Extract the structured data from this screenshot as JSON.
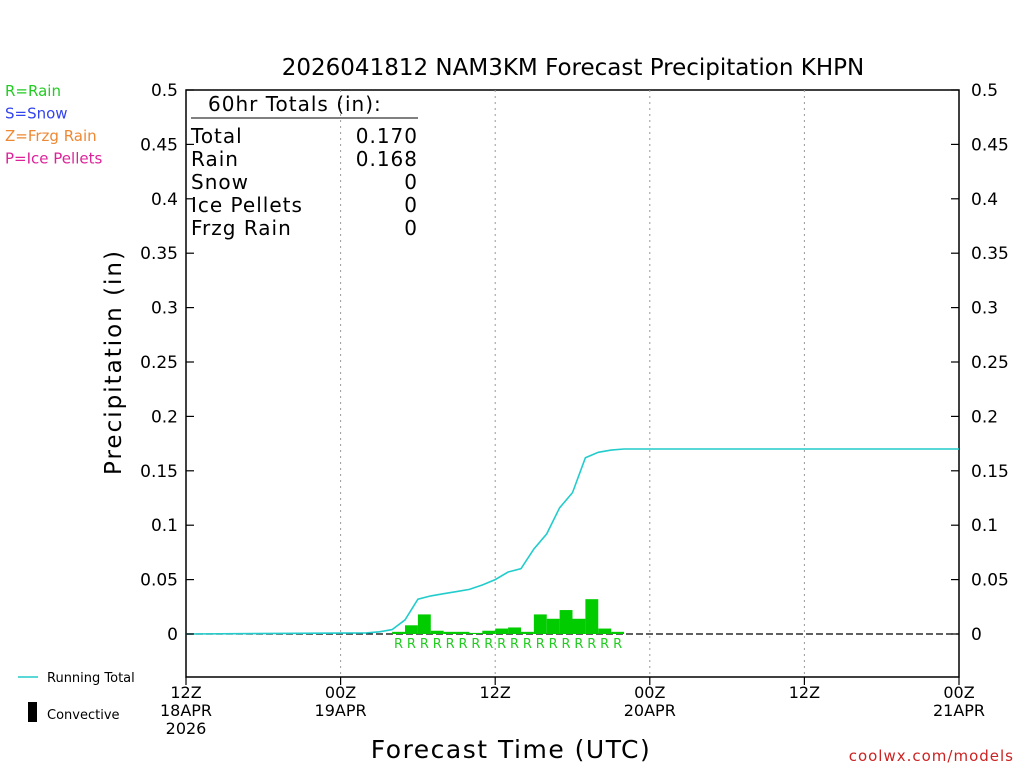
{
  "chart_data": {
    "type": "bar",
    "title": "2026041812 NAM3KM Forecast Precipitation KHPN",
    "xlabel": "Forecast Time (UTC)",
    "ylabel": "Precipitation (in)",
    "ylim": [
      -0.04,
      0.5
    ],
    "xlim_hours": [
      0,
      60
    ],
    "y_ticks": [
      0,
      0.05,
      0.1,
      0.15,
      0.2,
      0.25,
      0.3,
      0.35,
      0.4,
      0.45,
      0.5
    ],
    "y_tick_labels": [
      "0",
      "0.05",
      "0.1",
      "0.15",
      "0.2",
      "0.25",
      "0.3",
      "0.35",
      "0.4",
      "0.45",
      "0.5"
    ],
    "x_ticks": [
      {
        "hour": 0,
        "lines": [
          "12Z",
          "18APR",
          "2026"
        ]
      },
      {
        "hour": 12,
        "lines": [
          "00Z",
          "19APR"
        ]
      },
      {
        "hour": 24,
        "lines": [
          "12Z"
        ]
      },
      {
        "hour": 36,
        "lines": [
          "00Z",
          "20APR"
        ]
      },
      {
        "hour": 48,
        "lines": [
          "12Z"
        ]
      },
      {
        "hour": 60,
        "lines": [
          "00Z",
          "21APR"
        ]
      }
    ],
    "legend": [
      {
        "label": "R=Rain",
        "color": "#22cc22"
      },
      {
        "label": "S=Snow",
        "color": "#3344ee"
      },
      {
        "label": "Z=Frzg Rain",
        "color": "#ee8833"
      },
      {
        "label": "P=Ice Pellets",
        "color": "#dd2299"
      }
    ],
    "bottom_legend": [
      {
        "label": "Running Total",
        "kind": "line",
        "color": "#22cccc"
      },
      {
        "label": "Convective",
        "kind": "bar",
        "color": "#000000"
      }
    ],
    "totals_box": {
      "header": "60hr Totals (in):",
      "rows": [
        {
          "label": "Total",
          "value": "0.170"
        },
        {
          "label": "Rain",
          "value": "0.168"
        },
        {
          "label": "Snow",
          "value": "0"
        },
        {
          "label": "Ice Pellets",
          "value": "0"
        },
        {
          "label": "Frzg Rain",
          "value": "0"
        }
      ]
    },
    "series": [
      {
        "name": "Hourly Rain",
        "type": "bar",
        "color": "#00cc00",
        "bar_width_hours": 1,
        "points": [
          {
            "hour": 16,
            "value": 0.002
          },
          {
            "hour": 17,
            "value": 0.008
          },
          {
            "hour": 18,
            "value": 0.018
          },
          {
            "hour": 19,
            "value": 0.003
          },
          {
            "hour": 20,
            "value": 0.002
          },
          {
            "hour": 21,
            "value": 0.002
          },
          {
            "hour": 22,
            "value": 0.001
          },
          {
            "hour": 23,
            "value": 0.003
          },
          {
            "hour": 24,
            "value": 0.005
          },
          {
            "hour": 25,
            "value": 0.006
          },
          {
            "hour": 26,
            "value": 0.002
          },
          {
            "hour": 27,
            "value": 0.018
          },
          {
            "hour": 28,
            "value": 0.014
          },
          {
            "hour": 29,
            "value": 0.022
          },
          {
            "hour": 30,
            "value": 0.014
          },
          {
            "hour": 31,
            "value": 0.032
          },
          {
            "hour": 32,
            "value": 0.005
          },
          {
            "hour": 33,
            "value": 0.002
          }
        ]
      },
      {
        "name": "Running Total",
        "type": "line",
        "color": "#22cccc",
        "points": [
          {
            "hour": 0,
            "value": 0
          },
          {
            "hour": 14,
            "value": 0.001
          },
          {
            "hour": 15,
            "value": 0.002
          },
          {
            "hour": 16,
            "value": 0.004
          },
          {
            "hour": 17,
            "value": 0.013
          },
          {
            "hour": 18,
            "value": 0.032
          },
          {
            "hour": 19,
            "value": 0.035
          },
          {
            "hour": 20,
            "value": 0.037
          },
          {
            "hour": 21,
            "value": 0.039
          },
          {
            "hour": 22,
            "value": 0.041
          },
          {
            "hour": 23,
            "value": 0.045
          },
          {
            "hour": 24,
            "value": 0.05
          },
          {
            "hour": 25,
            "value": 0.057
          },
          {
            "hour": 26,
            "value": 0.06
          },
          {
            "hour": 27,
            "value": 0.078
          },
          {
            "hour": 28,
            "value": 0.092
          },
          {
            "hour": 29,
            "value": 0.116
          },
          {
            "hour": 30,
            "value": 0.13
          },
          {
            "hour": 31,
            "value": 0.162
          },
          {
            "hour": 32,
            "value": 0.167
          },
          {
            "hour": 33,
            "value": 0.169
          },
          {
            "hour": 34,
            "value": 0.17
          },
          {
            "hour": 60,
            "value": 0.17
          }
        ]
      }
    ],
    "precip_type_markers": {
      "symbol": "R",
      "color": "#22cc22",
      "hours": [
        16,
        17,
        18,
        19,
        20,
        21,
        22,
        23,
        24,
        25,
        26,
        27,
        28,
        29,
        30,
        31,
        32,
        33
      ]
    },
    "credit": "coolwx.com/models"
  }
}
